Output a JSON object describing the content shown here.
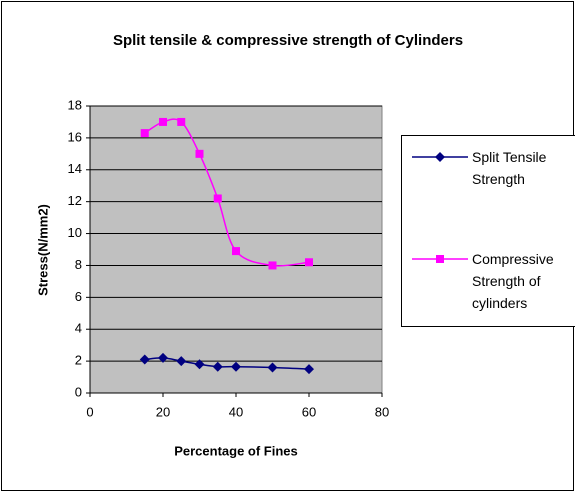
{
  "chart_data": {
    "type": "line",
    "title": "Split tensile & compressive strength of Cylinders",
    "x_label": "Percentage of Fines",
    "y_label": "Stress(N/mm2)",
    "x": [
      15,
      20,
      25,
      30,
      35,
      40,
      50,
      60
    ],
    "series": [
      {
        "name": "Split Tensile Strength",
        "color": "#000080",
        "marker": "diamond",
        "values": [
          2.1,
          2.2,
          2.0,
          1.8,
          1.65,
          1.65,
          1.6,
          1.5
        ]
      },
      {
        "name": "Compressive Strength of cylinders",
        "color": "#ff00ff",
        "marker": "square",
        "values": [
          16.3,
          17.0,
          17.0,
          15.0,
          12.2,
          8.9,
          8.0,
          8.2
        ]
      }
    ],
    "xlim": [
      0,
      80
    ],
    "xticks": [
      0,
      20,
      40,
      60,
      80
    ],
    "ylim": [
      0,
      18
    ],
    "yticks": [
      0,
      2,
      4,
      6,
      8,
      10,
      12,
      14,
      16,
      18
    ],
    "grid": true,
    "smooth": true,
    "legend": "right",
    "plot_background": "#c0c0c0"
  }
}
